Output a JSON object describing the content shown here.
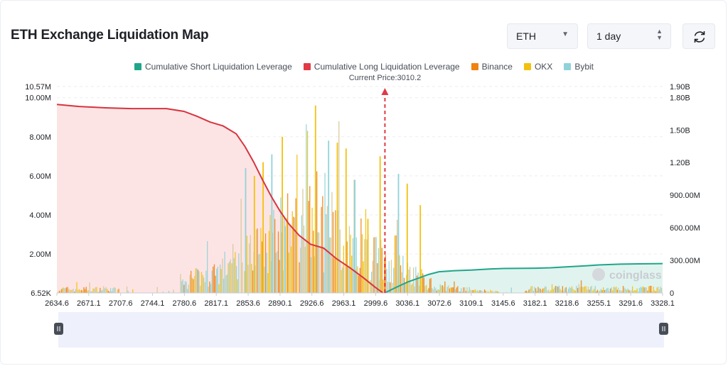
{
  "title": "ETH Exchange Liquidation Map",
  "controls": {
    "symbol": "ETH",
    "range": "1 day",
    "refresh_icon": "refresh-icon"
  },
  "watermark": "coinglass",
  "chart_data": {
    "type": "bar",
    "title": "ETH Exchange Liquidation Map",
    "current_price_label": "Current Price:3010.2",
    "current_price": 3010.2,
    "legend": [
      {
        "name": "Cumulative Short Liquidation Leverage",
        "color": "#1fa68a"
      },
      {
        "name": "Cumulative Long Liquidation Leverage",
        "color": "#e03a46"
      },
      {
        "name": "Binance",
        "color": "#f0820f"
      },
      {
        "name": "OKX",
        "color": "#f2c10f"
      },
      {
        "name": "Bybit",
        "color": "#8fd3d9"
      }
    ],
    "x_range": [
      2634.6,
      3328.1
    ],
    "x_ticks": [
      "2634.6",
      "2671.1",
      "2707.6",
      "2744.1",
      "2780.6",
      "2817.1",
      "2853.6",
      "2890.1",
      "2926.6",
      "2963.1",
      "2999.6",
      "3036.1",
      "3072.6",
      "3109.1",
      "3145.6",
      "3182.1",
      "3218.6",
      "3255.1",
      "3291.6",
      "3328.1"
    ],
    "y_left_range": [
      6520,
      10570000
    ],
    "y_left_ticks": [
      "6.52K",
      "2.00M",
      "4.00M",
      "6.00M",
      "8.00M",
      "10.00M",
      "10.57M"
    ],
    "y_right_range": [
      0,
      1900000000
    ],
    "y_right_ticks": [
      "0",
      "300.00M",
      "600.00M",
      "900.00M",
      "1.20B",
      "1.50B",
      "1.80B",
      "1.90B"
    ],
    "grid": true,
    "legend_position": "top-center",
    "cumulative_long": [
      [
        2634.6,
        9650000.0
      ],
      [
        2660,
        9550000.0
      ],
      [
        2690,
        9480000.0
      ],
      [
        2720,
        9440000.0
      ],
      [
        2745,
        9440000.0
      ],
      [
        2760,
        9440000.0
      ],
      [
        2780,
        9300000.0
      ],
      [
        2795,
        9050000.0
      ],
      [
        2810,
        8750000.0
      ],
      [
        2825,
        8550000.0
      ],
      [
        2840,
        8150000.0
      ],
      [
        2850,
        7500000.0
      ],
      [
        2860,
        6700000.0
      ],
      [
        2870,
        5800000.0
      ],
      [
        2880,
        4950000.0
      ],
      [
        2890,
        4200000.0
      ],
      [
        2900,
        3550000.0
      ],
      [
        2912,
        2950000.0
      ],
      [
        2925,
        2500000.0
      ],
      [
        2940,
        2300000.0
      ],
      [
        2955,
        1750000.0
      ],
      [
        2970,
        1300000.0
      ],
      [
        2985,
        800000.0
      ],
      [
        2999,
        300000.0
      ],
      [
        3008,
        6500.0
      ]
    ],
    "cumulative_short": [
      [
        3010,
        0
      ],
      [
        3020,
        40000000.0
      ],
      [
        3036,
        100000000.0
      ],
      [
        3050,
        140000000.0
      ],
      [
        3060,
        170000000.0
      ],
      [
        3072,
        195000000.0
      ],
      [
        3090,
        205000000.0
      ],
      [
        3109,
        210000000.0
      ],
      [
        3130,
        220000000.0
      ],
      [
        3146,
        225000000.0
      ],
      [
        3182,
        228000000.0
      ],
      [
        3200,
        232000000.0
      ],
      [
        3218,
        240000000.0
      ],
      [
        3240,
        250000000.0
      ],
      [
        3255,
        258000000.0
      ],
      [
        3280,
        265000000.0
      ],
      [
        3300,
        268000000.0
      ],
      [
        3328.1,
        270000000.0
      ]
    ],
    "bars_approx": {
      "note": "",
      "peaks": [
        [
          2850,
          6400000.0
        ],
        [
          2860,
          6000000.0
        ],
        [
          2870,
          6700000.0
        ],
        [
          2880,
          7100000.0
        ],
        [
          2892,
          8000000.0
        ],
        [
          2930,
          9600000.0
        ],
        [
          2945,
          7800000.0
        ],
        [
          2955,
          7700000.0
        ],
        [
          2965,
          7400000.0
        ],
        [
          2975,
          5800000.0
        ],
        [
          2990,
          3800000.0
        ],
        [
          3004,
          7000000.0
        ],
        [
          3025,
          6100000.0
        ],
        [
          3035,
          5600000.0
        ],
        [
          3050,
          4500000.0
        ]
      ]
    }
  }
}
